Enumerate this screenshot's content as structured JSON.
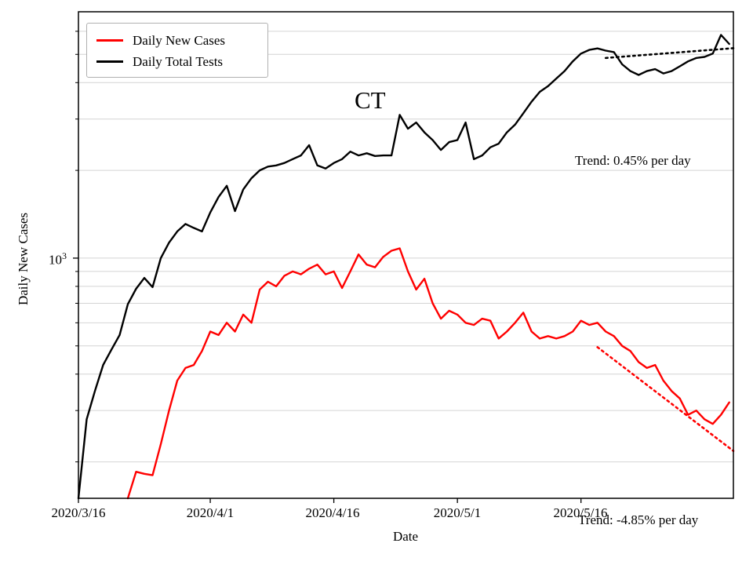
{
  "figure": {
    "ylabel": "Daily New Cases",
    "xlabel": "Date",
    "ytick": {
      "base": "10",
      "exp": "3"
    }
  },
  "legend": {
    "entries": [
      {
        "label": "Daily New Cases",
        "color": "#ff0000"
      },
      {
        "label": "Daily Total Tests",
        "color": "#000000"
      }
    ]
  },
  "annotations": {
    "state_label": "CT",
    "trend_top": "Trend: 0.45% per day",
    "trend_bottom": "Trend: -4.85% per day"
  },
  "chart_data": {
    "type": "line",
    "title": "CT",
    "xlabel": "Date",
    "ylabel": "Daily New Cases",
    "y_scale": "log",
    "y_range": [
      150,
      7000
    ],
    "x_range_days": [
      0,
      79.5
    ],
    "xtick_labels": [
      "2020/3/16",
      "2020/4/1",
      "2020/4/16",
      "2020/5/1",
      "2020/5/16"
    ],
    "xtick_days": [
      0,
      16,
      31,
      46,
      61
    ],
    "gridline_values": [
      200,
      300,
      400,
      500,
      600,
      700,
      800,
      900,
      1000,
      2000,
      3000,
      4000,
      5000,
      6000
    ],
    "grid_color": "#d4d4d4",
    "dates": [
      "2020/3/16",
      "2020/3/17",
      "2020/3/18",
      "2020/3/19",
      "2020/3/20",
      "2020/3/21",
      "2020/3/22",
      "2020/3/23",
      "2020/3/24",
      "2020/3/25",
      "2020/3/26",
      "2020/3/27",
      "2020/3/28",
      "2020/3/29",
      "2020/3/30",
      "2020/3/31",
      "2020/4/1",
      "2020/4/2",
      "2020/4/3",
      "2020/4/4",
      "2020/4/5",
      "2020/4/6",
      "2020/4/7",
      "2020/4/8",
      "2020/4/9",
      "2020/4/10",
      "2020/4/11",
      "2020/4/12",
      "2020/4/13",
      "2020/4/14",
      "2020/4/15",
      "2020/4/16",
      "2020/4/17",
      "2020/4/18",
      "2020/4/19",
      "2020/4/20",
      "2020/4/21",
      "2020/4/22",
      "2020/4/23",
      "2020/4/24",
      "2020/4/25",
      "2020/4/26",
      "2020/4/27",
      "2020/4/28",
      "2020/4/29",
      "2020/4/30",
      "2020/5/1",
      "2020/5/2",
      "2020/5/3",
      "2020/5/4",
      "2020/5/5",
      "2020/5/6",
      "2020/5/7",
      "2020/5/8",
      "2020/5/9",
      "2020/5/10",
      "2020/5/11",
      "2020/5/12",
      "2020/5/13",
      "2020/5/14",
      "2020/5/15",
      "2020/5/16",
      "2020/5/17",
      "2020/5/18",
      "2020/5/19",
      "2020/5/20",
      "2020/5/21",
      "2020/5/22",
      "2020/5/23",
      "2020/5/24",
      "2020/5/25",
      "2020/5/26",
      "2020/5/27",
      "2020/5/28",
      "2020/5/29",
      "2020/5/30",
      "2020/5/31",
      "2020/6/1",
      "2020/6/2",
      "2020/6/3"
    ],
    "series": [
      {
        "name": "Daily Total Tests",
        "color": "#000000",
        "start_day": 0,
        "values": [
          150,
          280,
          350,
          430,
          485,
          545,
          695,
          785,
          855,
          795,
          1000,
          1130,
          1235,
          1310,
          1270,
          1235,
          1435,
          1620,
          1770,
          1450,
          1720,
          1880,
          2000,
          2060,
          2080,
          2120,
          2185,
          2250,
          2440,
          2080,
          2030,
          2120,
          2185,
          2320,
          2250,
          2290,
          2240,
          2250,
          2250,
          3100,
          2780,
          2920,
          2700,
          2540,
          2350,
          2500,
          2540,
          2920,
          2185,
          2250,
          2400,
          2470,
          2700,
          2870,
          3140,
          3440,
          3720,
          3890,
          4130,
          4380,
          4730,
          5030,
          5180,
          5240,
          5150,
          5090,
          4620,
          4380,
          4250,
          4380,
          4450,
          4300,
          4380,
          4550,
          4730,
          4860,
          4900,
          5030,
          5830,
          5430
        ]
      },
      {
        "name": "Daily New Cases",
        "color": "#ff0000",
        "start_day": 6,
        "values": [
          150,
          185,
          182,
          180,
          230,
          300,
          380,
          420,
          430,
          480,
          560,
          545,
          600,
          560,
          640,
          600,
          780,
          830,
          800,
          870,
          900,
          880,
          920,
          950,
          880,
          900,
          790,
          900,
          1030,
          950,
          930,
          1010,
          1060,
          1080,
          900,
          780,
          850,
          700,
          620,
          660,
          640,
          600,
          590,
          620,
          610,
          530,
          560,
          600,
          650,
          560,
          530,
          540,
          530,
          540,
          560,
          610,
          590,
          600,
          560,
          540,
          500,
          480,
          440,
          420,
          430,
          380,
          350,
          330,
          290,
          300,
          280,
          270,
          290,
          320
        ]
      }
    ],
    "trend_lines": [
      {
        "name": "tests-trend",
        "color": "#000000",
        "rate_label": "Trend: 0.45% per day",
        "start_day": 64,
        "end_day": 79.5,
        "start_value": 4860,
        "end_value": 5250
      },
      {
        "name": "cases-trend",
        "color": "#ff0000",
        "rate_label": "Trend: -4.85% per day",
        "start_day": 63,
        "end_day": 79.5,
        "start_value": 495,
        "end_value": 218
      }
    ]
  }
}
